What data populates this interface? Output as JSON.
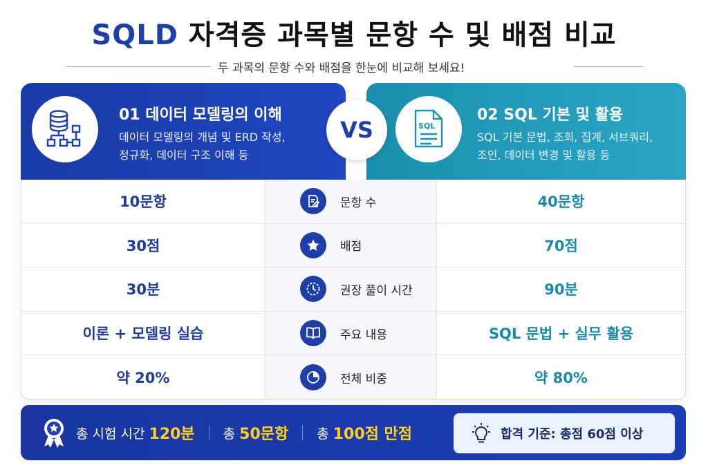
{
  "title": {
    "highlight": "SQLD",
    "rest": " 자격증 과목별 문항 수 및 배점 비교"
  },
  "subtitle": "두 과목의 문항 수와 배점을 한눈에 비교해 보세요!",
  "subjects": {
    "left": {
      "heading": "01  데이터 모델링의 이해",
      "desc_line1": "데이터 모델링의 개념 및 ERD 작성,",
      "desc_line2": "정규화, 데이터 구조 이해 등",
      "icon": "database-diagram-icon",
      "color": "#1f3fa8"
    },
    "right": {
      "heading": "02  SQL 기본 및 활용",
      "desc_line1": "SQL 기본 문법, 조회, 집계, 서브쿼리,",
      "desc_line2": "조인, 데이터 변경 및 활용 등",
      "icon": "sql-document-icon",
      "color": "#1b8fae"
    },
    "vs": "VS"
  },
  "rows": [
    {
      "left": "10문항",
      "label": "문항 수",
      "right": "40문항",
      "icon": "edit-document-icon"
    },
    {
      "left": "30점",
      "label": "배점",
      "right": "70점",
      "icon": "star-icon"
    },
    {
      "left": "30분",
      "label": "권장 풀이 시간",
      "right": "90분",
      "icon": "clock-icon"
    },
    {
      "left": "이론 + 모델링 실습",
      "label": "주요 내용",
      "right": "SQL 문법 + 실무 활용",
      "icon": "book-icon"
    },
    {
      "left": "약 20%",
      "label": "전체 비중",
      "right": "약 80%",
      "icon": "pie-chart-icon"
    }
  ],
  "footer": {
    "time_prefix": "총 시험 시간",
    "time_value": "120분",
    "count_prefix": "총",
    "count_value": "50문항",
    "score_prefix": "총",
    "score_value": "100점 만점",
    "pass": "합격 기준: 총점 60점 이상",
    "accent": "#ffd21f"
  }
}
